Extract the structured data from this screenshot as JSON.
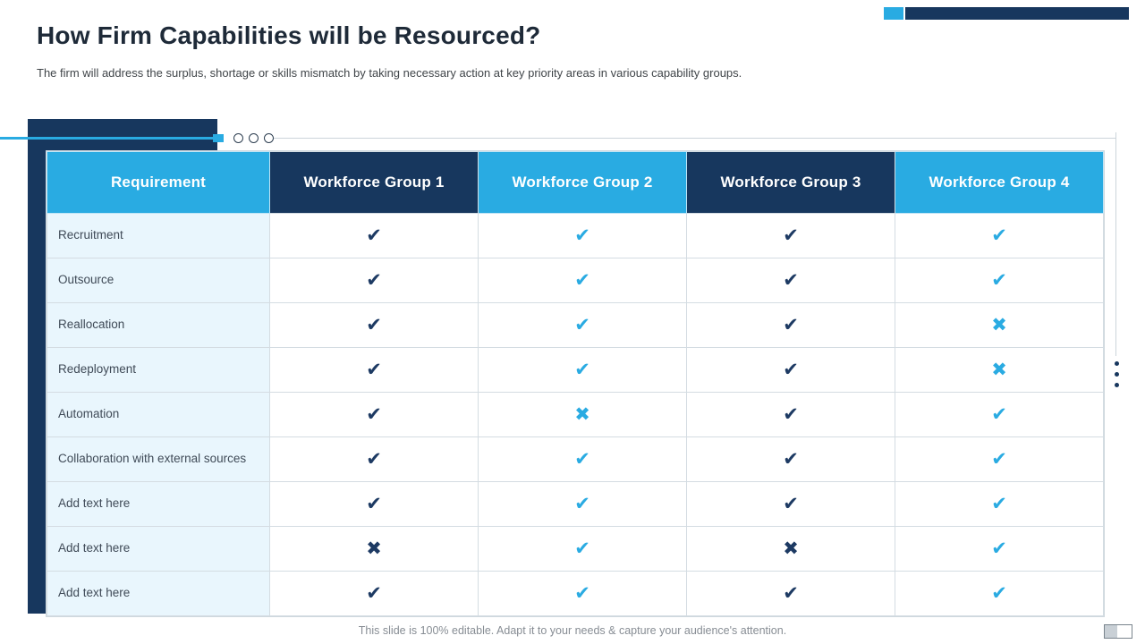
{
  "slide": {
    "title": "How Firm Capabilities will be Resourced?",
    "subtitle": "The firm will address the surplus, shortage or skills mismatch by taking necessary action at key priority areas in various capability groups.",
    "footer": "This slide is 100% editable. Adapt it to your needs & capture your audience's attention."
  },
  "table": {
    "headers": [
      "Requirement",
      "Workforce Group 1",
      "Workforce Group 2",
      "Workforce Group 3",
      "Workforce Group 4"
    ],
    "header_styles": [
      "cyan",
      "navy",
      "cyan",
      "navy",
      "cyan"
    ],
    "rows": [
      {
        "label": "Recruitment",
        "marks": [
          "check",
          "check",
          "check",
          "check"
        ]
      },
      {
        "label": "Outsource",
        "marks": [
          "check",
          "check",
          "check",
          "check"
        ]
      },
      {
        "label": "Reallocation",
        "marks": [
          "check",
          "check",
          "check",
          "cross"
        ]
      },
      {
        "label": "Redeployment",
        "marks": [
          "check",
          "check",
          "check",
          "cross"
        ]
      },
      {
        "label": "Automation",
        "marks": [
          "check",
          "cross",
          "check",
          "check"
        ]
      },
      {
        "label": "Collaboration with external sources",
        "marks": [
          "check",
          "check",
          "check",
          "check"
        ]
      },
      {
        "label": "Add text here",
        "marks": [
          "check",
          "check",
          "check",
          "check"
        ]
      },
      {
        "label": "Add text here",
        "marks": [
          "cross",
          "check",
          "cross",
          "check"
        ]
      },
      {
        "label": "Add text here",
        "marks": [
          "check",
          "check",
          "check",
          "check"
        ]
      }
    ]
  },
  "icons": {
    "check": "✔",
    "cross": "✖"
  },
  "colors": {
    "navy": "#17375e",
    "cyan": "#29abe2",
    "label_row_bg": "#e9f6fd",
    "mark_navy": "#1d3a63",
    "mark_cyan": "#2aabe2"
  }
}
